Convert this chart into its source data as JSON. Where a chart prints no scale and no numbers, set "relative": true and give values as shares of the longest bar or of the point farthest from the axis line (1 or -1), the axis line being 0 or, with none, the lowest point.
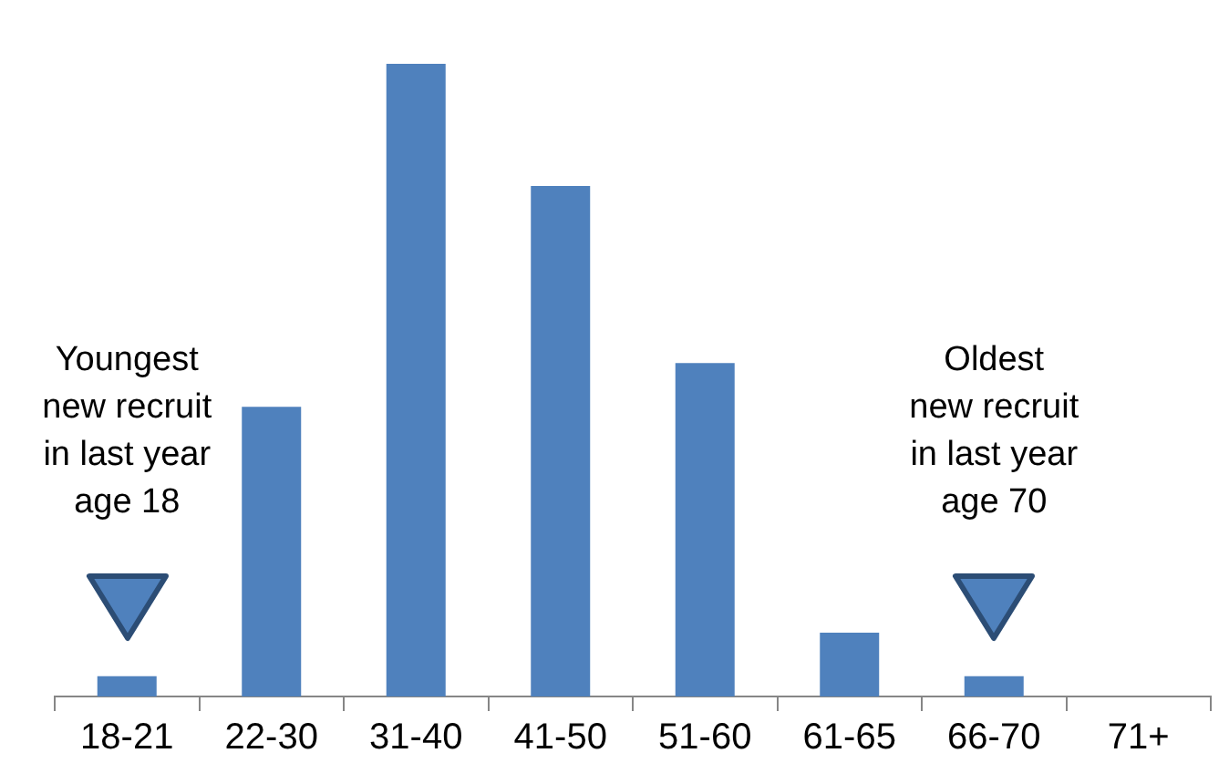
{
  "chart_data": {
    "type": "bar",
    "relative": true,
    "categories": [
      "18-21",
      "22-30",
      "31-40",
      "41-50",
      "51-60",
      "61-65",
      "66-70",
      "71+"
    ],
    "values": [
      0.032,
      0.458,
      1,
      0.807,
      0.527,
      0.101,
      0.032,
      0
    ],
    "color": "#4f81bd",
    "grid": false,
    "legend": false,
    "annotations": [
      "Youngest new recruit in last year age 18",
      "Oldest new recruit in last year age 70"
    ]
  }
}
